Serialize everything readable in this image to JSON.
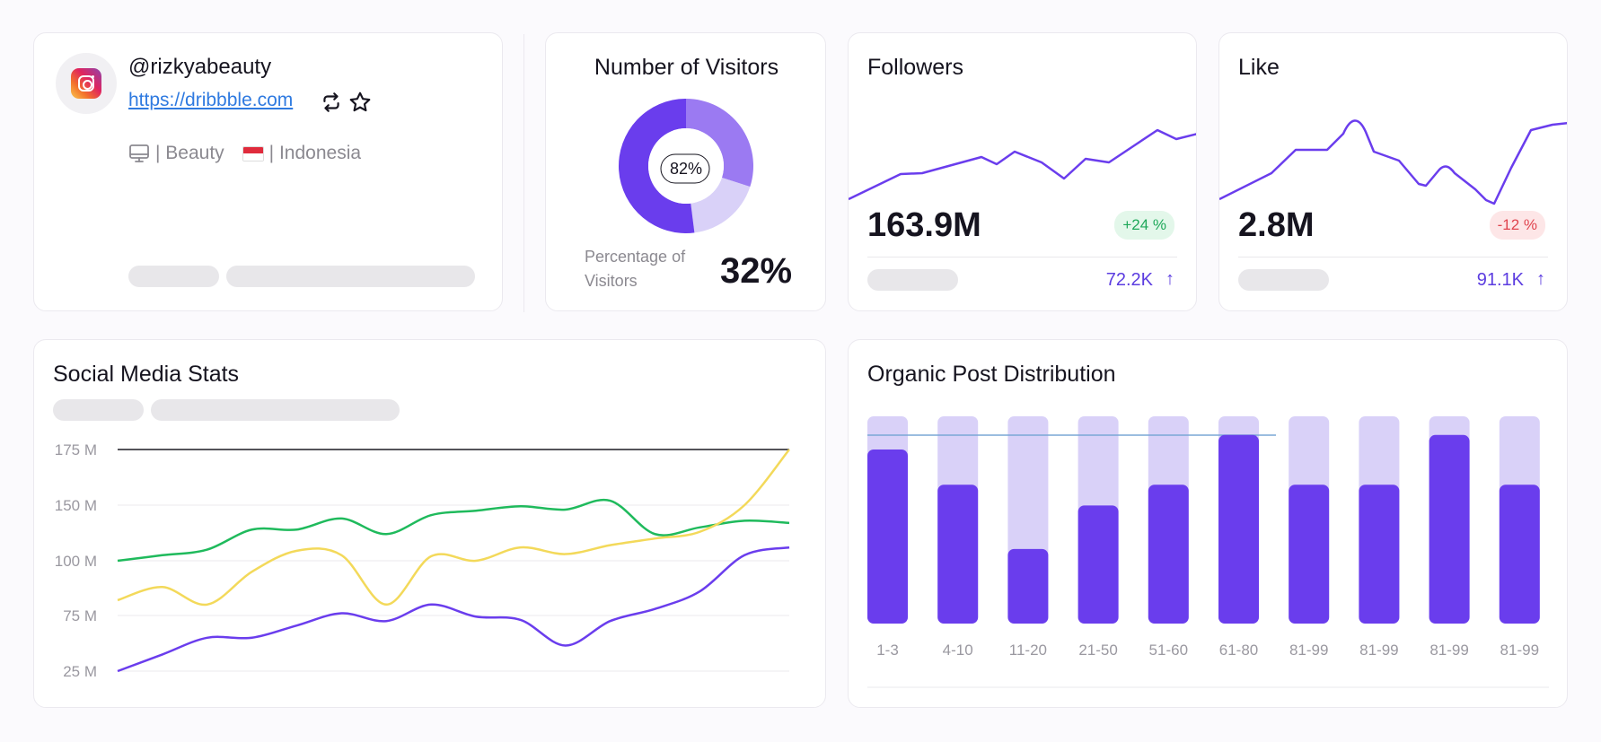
{
  "profile": {
    "handle": "@rizkyabeauty",
    "link": "https://dribbble.com",
    "category": "| Beauty",
    "country": "| Indonesia",
    "icons": [
      "instagram-icon",
      "repost-icon",
      "star-icon",
      "monitor-icon",
      "flag-indonesia-icon"
    ]
  },
  "visitors": {
    "title": "Number of Visitors",
    "center_label": "82%",
    "percentage_label": "Percentage of Visitors",
    "percentage_value": "32%",
    "segments": [
      {
        "name": "dark",
        "value": 52,
        "color": "#6a3ded"
      },
      {
        "name": "mid",
        "value": 30,
        "color": "#9b7af2"
      },
      {
        "name": "light",
        "value": 18,
        "color": "#d9d1f8"
      }
    ]
  },
  "followers": {
    "title": "Followers",
    "value": "163.9M",
    "badge": "+24 %",
    "secondary": "72.2K",
    "trend_arrow": "↑",
    "badge_color": "#1fa85a",
    "badge_bg": "#e3f7ea"
  },
  "likes": {
    "title": "Like",
    "value": "2.8M",
    "badge": "-12 %",
    "secondary": "91.1K",
    "trend_arrow": "↑",
    "badge_color": "#e0454f",
    "badge_bg": "#fde6e7"
  },
  "social_stats": {
    "title": "Social Media Stats"
  },
  "organic": {
    "title": "Organic Post Distribution"
  },
  "chart_data": [
    {
      "type": "line",
      "title": "Social Media Stats",
      "y_tick_labels": [
        "175 M",
        "150 M",
        "100 M",
        "75 M",
        "25 M"
      ],
      "grid": true,
      "series": [
        {
          "color": "#1fba5c",
          "values": [
            100,
            105,
            110,
            128,
            128,
            138,
            124,
            141,
            145,
            149,
            146,
            152,
            124,
            130,
            136,
            134
          ]
        },
        {
          "color": "#f3d95a",
          "values": [
            82,
            88,
            80,
            95,
            109,
            105,
            80,
            104,
            100,
            112,
            106,
            114,
            120,
            126,
            150,
            175
          ]
        },
        {
          "color": "#6a3ded",
          "values": [
            25,
            40,
            55,
            55,
            66,
            76,
            70,
            80,
            74,
            71,
            48,
            70,
            78,
            86,
            105,
            112
          ]
        }
      ]
    },
    {
      "type": "bar",
      "title": "Organic Post Distribution",
      "categories": [
        "1-3",
        "4-10",
        "11-20",
        "21-50",
        "51-60",
        "61-80",
        "81-99",
        "81-99",
        "81-99",
        "81-99"
      ],
      "values": [
        0.84,
        0.67,
        0.36,
        0.57,
        0.67,
        0.91,
        0.67,
        0.67,
        0.91,
        0.67
      ],
      "ylim": [
        0,
        1
      ],
      "colors": {
        "fill": "#6a3ded",
        "track": "#d9d1f8",
        "reference_line": "#7aa7d6"
      }
    }
  ]
}
